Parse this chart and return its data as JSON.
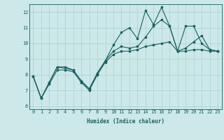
{
  "xlabel": "Humidex (Indice chaleur)",
  "xlim": [
    -0.5,
    23.5
  ],
  "ylim": [
    5.8,
    12.5
  ],
  "yticks": [
    6,
    7,
    8,
    9,
    10,
    11,
    12
  ],
  "xticks": [
    0,
    1,
    2,
    3,
    4,
    5,
    6,
    7,
    8,
    9,
    10,
    11,
    12,
    13,
    14,
    15,
    16,
    17,
    18,
    19,
    20,
    21,
    22,
    23
  ],
  "bg_color": "#cce8e8",
  "grid_color": "#b0d4d4",
  "line_color": "#1a6060",
  "line1_x": [
    0,
    1,
    2,
    3,
    4,
    5,
    6,
    7,
    8,
    9,
    10,
    11,
    12,
    13,
    14,
    15,
    16,
    17,
    18,
    19,
    20,
    21,
    22,
    23
  ],
  "line1_y": [
    7.9,
    6.5,
    7.5,
    8.5,
    8.5,
    8.3,
    7.6,
    7.1,
    8.1,
    8.9,
    9.5,
    9.8,
    9.7,
    9.8,
    10.4,
    11.1,
    11.5,
    11.1,
    9.5,
    9.7,
    10.1,
    10.5,
    9.6,
    9.5
  ],
  "line2_x": [
    0,
    1,
    2,
    3,
    5,
    6,
    7,
    8,
    9,
    10,
    11,
    12,
    13,
    14,
    15,
    16,
    17,
    18,
    19,
    20,
    21,
    22,
    23
  ],
  "line2_y": [
    7.9,
    6.5,
    7.5,
    8.5,
    8.3,
    7.6,
    7.1,
    8.1,
    8.9,
    9.9,
    10.7,
    11.0,
    10.3,
    12.1,
    11.2,
    12.3,
    11.1,
    9.5,
    11.1,
    11.1,
    10.0,
    9.6,
    9.5
  ],
  "line3_x": [
    0,
    1,
    2,
    3,
    4,
    5,
    6,
    7,
    8,
    9,
    10,
    11,
    12,
    13,
    14,
    15,
    16,
    17,
    18,
    19,
    20,
    21,
    22,
    23
  ],
  "line3_y": [
    7.9,
    6.5,
    7.4,
    8.3,
    8.3,
    8.2,
    7.5,
    7.0,
    8.0,
    8.8,
    9.3,
    9.5,
    9.5,
    9.6,
    9.8,
    9.9,
    10.0,
    10.1,
    9.5,
    9.5,
    9.6,
    9.6,
    9.5,
    9.5
  ]
}
